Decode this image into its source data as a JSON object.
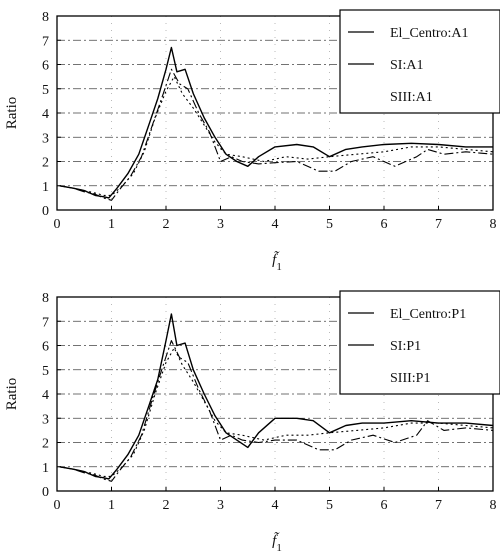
{
  "chart_data": [
    {
      "type": "line",
      "xlabel": "f̃",
      "xlabel_sub": "1",
      "ylabel": "Ratio",
      "xlim": [
        0,
        8
      ],
      "ylim": [
        0,
        8
      ],
      "xticks": [
        0,
        1,
        2,
        3,
        4,
        5,
        6,
        7,
        8
      ],
      "yticks": [
        0,
        1,
        2,
        3,
        4,
        5,
        6,
        7,
        8
      ],
      "xtick_labels": [
        "0",
        "1",
        "2",
        "3",
        "4",
        "5",
        "6",
        "7",
        "8"
      ],
      "ytick_labels": [
        "0",
        "1",
        "2",
        "3",
        "4",
        "5",
        "6",
        "7",
        "8"
      ],
      "grid": "dash-dot",
      "legend_position": "top-right",
      "series": [
        {
          "name": "El_Centro:A1",
          "color": "#000000",
          "points": [
            [
              0.05,
              1.0
            ],
            [
              0.3,
              0.9
            ],
            [
              0.5,
              0.8
            ],
            [
              0.7,
              0.6
            ],
            [
              0.85,
              0.55
            ],
            [
              0.95,
              0.5
            ],
            [
              1.1,
              0.9
            ],
            [
              1.3,
              1.5
            ],
            [
              1.5,
              2.3
            ],
            [
              1.7,
              3.6
            ],
            [
              1.85,
              4.6
            ],
            [
              2.0,
              5.8
            ],
            [
              2.1,
              6.7
            ],
            [
              2.2,
              5.7
            ],
            [
              2.35,
              5.8
            ],
            [
              2.5,
              4.8
            ],
            [
              2.7,
              3.8
            ],
            [
              2.9,
              3.0
            ],
            [
              3.1,
              2.3
            ],
            [
              3.3,
              2.0
            ],
            [
              3.5,
              1.8
            ],
            [
              3.7,
              2.2
            ],
            [
              4.0,
              2.6
            ],
            [
              4.4,
              2.7
            ],
            [
              4.7,
              2.6
            ],
            [
              5.0,
              2.2
            ],
            [
              5.3,
              2.5
            ],
            [
              5.6,
              2.6
            ],
            [
              6.0,
              2.7
            ],
            [
              6.5,
              2.75
            ],
            [
              7.0,
              2.7
            ],
            [
              7.5,
              2.6
            ],
            [
              8.0,
              2.6
            ]
          ]
        },
        {
          "name": "SI:A1",
          "color": "#000000",
          "points": [
            [
              0.05,
              1.0
            ],
            [
              0.3,
              0.9
            ],
            [
              0.5,
              0.75
            ],
            [
              0.7,
              0.65
            ],
            [
              0.85,
              0.5
            ],
            [
              1.0,
              0.4
            ],
            [
              1.15,
              0.85
            ],
            [
              1.35,
              1.4
            ],
            [
              1.55,
              2.2
            ],
            [
              1.75,
              3.5
            ],
            [
              1.95,
              4.8
            ],
            [
              2.1,
              5.8
            ],
            [
              2.25,
              5.2
            ],
            [
              2.4,
              5.0
            ],
            [
              2.6,
              4.0
            ],
            [
              2.8,
              3.2
            ],
            [
              3.0,
              2.0
            ],
            [
              3.2,
              2.2
            ],
            [
              3.4,
              2.0
            ],
            [
              3.7,
              1.9
            ],
            [
              4.0,
              1.95
            ],
            [
              4.4,
              2.0
            ],
            [
              4.8,
              1.6
            ],
            [
              5.1,
              1.6
            ],
            [
              5.4,
              2.0
            ],
            [
              5.8,
              2.2
            ],
            [
              6.2,
              1.8
            ],
            [
              6.6,
              2.2
            ],
            [
              6.8,
              2.5
            ],
            [
              7.1,
              2.3
            ],
            [
              7.5,
              2.4
            ],
            [
              8.0,
              2.3
            ]
          ]
        },
        {
          "name": "SIII:A1",
          "color": "#000000",
          "points": [
            [
              0.05,
              1.0
            ],
            [
              0.3,
              0.9
            ],
            [
              0.5,
              0.8
            ],
            [
              0.7,
              0.7
            ],
            [
              0.85,
              0.6
            ],
            [
              1.0,
              0.6
            ],
            [
              1.2,
              1.0
            ],
            [
              1.4,
              1.5
            ],
            [
              1.6,
              2.4
            ],
            [
              1.8,
              3.8
            ],
            [
              2.0,
              4.9
            ],
            [
              2.15,
              5.5
            ],
            [
              2.3,
              4.8
            ],
            [
              2.5,
              4.2
            ],
            [
              2.7,
              3.5
            ],
            [
              2.9,
              2.8
            ],
            [
              3.1,
              2.3
            ],
            [
              3.4,
              2.2
            ],
            [
              3.8,
              2.0
            ],
            [
              4.2,
              2.2
            ],
            [
              4.6,
              2.1
            ],
            [
              5.0,
              2.2
            ],
            [
              5.5,
              2.3
            ],
            [
              6.0,
              2.4
            ],
            [
              6.5,
              2.6
            ],
            [
              7.0,
              2.6
            ],
            [
              7.5,
              2.5
            ],
            [
              8.0,
              2.4
            ]
          ]
        }
      ]
    },
    {
      "type": "line",
      "xlabel": "f̃",
      "xlabel_sub": "1",
      "ylabel": "Ratio",
      "xlim": [
        0,
        8
      ],
      "ylim": [
        0,
        8
      ],
      "xticks": [
        0,
        1,
        2,
        3,
        4,
        5,
        6,
        7,
        8
      ],
      "yticks": [
        0,
        1,
        2,
        3,
        4,
        5,
        6,
        7,
        8
      ],
      "xtick_labels": [
        "0",
        "1",
        "2",
        "3",
        "4",
        "5",
        "6",
        "7",
        "8"
      ],
      "ytick_labels": [
        "0",
        "1",
        "2",
        "3",
        "4",
        "5",
        "6",
        "7",
        "8"
      ],
      "grid": "dash-dot",
      "legend_position": "top-right",
      "series": [
        {
          "name": "El_Centro:P1",
          "color": "#000000",
          "points": [
            [
              0.05,
              1.0
            ],
            [
              0.3,
              0.9
            ],
            [
              0.5,
              0.8
            ],
            [
              0.7,
              0.6
            ],
            [
              0.85,
              0.55
            ],
            [
              0.95,
              0.5
            ],
            [
              1.1,
              0.9
            ],
            [
              1.3,
              1.5
            ],
            [
              1.5,
              2.3
            ],
            [
              1.7,
              3.6
            ],
            [
              1.85,
              4.6
            ],
            [
              2.0,
              6.2
            ],
            [
              2.1,
              7.3
            ],
            [
              2.2,
              6.0
            ],
            [
              2.35,
              6.1
            ],
            [
              2.5,
              5.0
            ],
            [
              2.7,
              4.0
            ],
            [
              2.9,
              3.1
            ],
            [
              3.1,
              2.4
            ],
            [
              3.3,
              2.1
            ],
            [
              3.5,
              1.8
            ],
            [
              3.7,
              2.4
            ],
            [
              4.0,
              3.0
            ],
            [
              4.4,
              3.0
            ],
            [
              4.7,
              2.9
            ],
            [
              5.0,
              2.4
            ],
            [
              5.3,
              2.7
            ],
            [
              5.6,
              2.8
            ],
            [
              6.0,
              2.8
            ],
            [
              6.5,
              2.9
            ],
            [
              7.0,
              2.8
            ],
            [
              7.5,
              2.8
            ],
            [
              8.0,
              2.7
            ]
          ]
        },
        {
          "name": "SI:P1",
          "color": "#000000",
          "points": [
            [
              0.05,
              1.0
            ],
            [
              0.3,
              0.9
            ],
            [
              0.5,
              0.75
            ],
            [
              0.7,
              0.65
            ],
            [
              0.85,
              0.5
            ],
            [
              1.0,
              0.4
            ],
            [
              1.15,
              0.85
            ],
            [
              1.35,
              1.4
            ],
            [
              1.55,
              2.3
            ],
            [
              1.75,
              3.8
            ],
            [
              1.95,
              5.2
            ],
            [
              2.1,
              6.2
            ],
            [
              2.25,
              5.5
            ],
            [
              2.4,
              5.3
            ],
            [
              2.6,
              4.2
            ],
            [
              2.8,
              3.3
            ],
            [
              3.0,
              2.1
            ],
            [
              3.2,
              2.3
            ],
            [
              3.4,
              2.1
            ],
            [
              3.7,
              2.0
            ],
            [
              4.0,
              2.1
            ],
            [
              4.4,
              2.1
            ],
            [
              4.8,
              1.7
            ],
            [
              5.1,
              1.7
            ],
            [
              5.4,
              2.1
            ],
            [
              5.8,
              2.3
            ],
            [
              6.2,
              2.0
            ],
            [
              6.6,
              2.3
            ],
            [
              6.8,
              2.9
            ],
            [
              7.1,
              2.5
            ],
            [
              7.5,
              2.6
            ],
            [
              8.0,
              2.5
            ]
          ]
        },
        {
          "name": "SIII:P1",
          "color": "#000000",
          "points": [
            [
              0.05,
              1.0
            ],
            [
              0.3,
              0.9
            ],
            [
              0.5,
              0.8
            ],
            [
              0.7,
              0.7
            ],
            [
              0.85,
              0.6
            ],
            [
              1.0,
              0.6
            ],
            [
              1.2,
              1.0
            ],
            [
              1.4,
              1.5
            ],
            [
              1.6,
              2.5
            ],
            [
              1.8,
              4.0
            ],
            [
              2.0,
              5.3
            ],
            [
              2.15,
              5.9
            ],
            [
              2.3,
              5.2
            ],
            [
              2.5,
              4.5
            ],
            [
              2.7,
              3.7
            ],
            [
              2.9,
              2.9
            ],
            [
              3.1,
              2.4
            ],
            [
              3.4,
              2.3
            ],
            [
              3.8,
              2.1
            ],
            [
              4.2,
              2.3
            ],
            [
              4.6,
              2.3
            ],
            [
              5.0,
              2.4
            ],
            [
              5.5,
              2.5
            ],
            [
              6.0,
              2.6
            ],
            [
              6.5,
              2.8
            ],
            [
              7.0,
              2.8
            ],
            [
              7.5,
              2.7
            ],
            [
              8.0,
              2.6
            ]
          ]
        }
      ]
    }
  ]
}
